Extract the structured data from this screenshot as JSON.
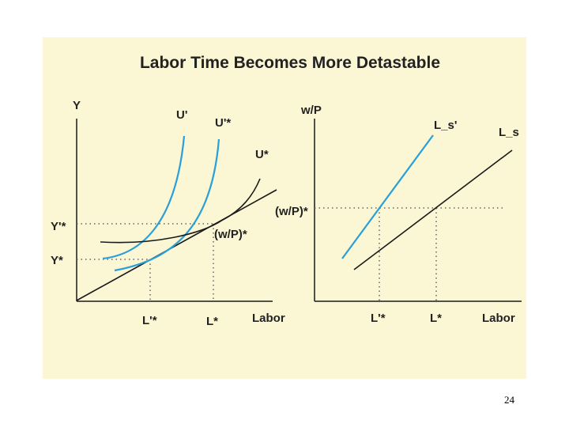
{
  "title": "Labor Time Becomes More Detastable",
  "page_number": "24",
  "colors": {
    "background": "#fbf6d4",
    "blue_curve": "#2a9fd8",
    "black_line": "#1a1a1a",
    "dotted_guide": "#666666"
  },
  "left_panel": {
    "y_axis_label": "Y",
    "x_axis_label": "Labor",
    "curve_labels": {
      "u_prime": "U'",
      "u_prime_star": "U'*",
      "u_star": "U*"
    },
    "y_tick_labels": {
      "y_prime_star": "Y'*",
      "y_star": "Y*"
    },
    "x_tick_labels": {
      "l_prime_star": "L'*",
      "l_star": "L*"
    },
    "slope_label": "(w/P)*"
  },
  "right_panel": {
    "y_axis_label": "w/P",
    "x_axis_label": "Labor",
    "curve_labels": {
      "ls_prime": "L_s'",
      "ls": "L_s"
    },
    "y_tick_label": "(w/P)*",
    "x_tick_labels": {
      "l_prime_star": "L'*",
      "l_star": "L*"
    }
  }
}
